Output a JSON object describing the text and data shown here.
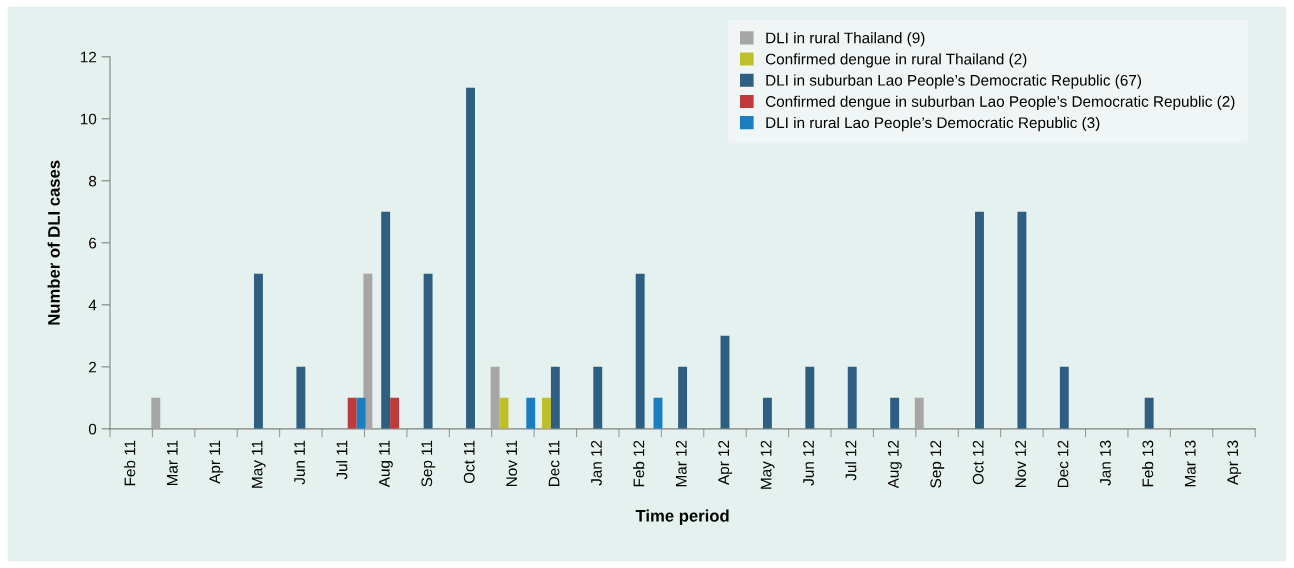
{
  "chart_data": {
    "type": "bar",
    "xlabel": "Time period",
    "ylabel": "Number of DLI cases",
    "categories": [
      "Feb 11",
      "Mar 11",
      "Apr 11",
      "May 11",
      "Jun 11",
      "Jul 11",
      "Aug 11",
      "Sep 11",
      "Oct 11",
      "Nov 11",
      "Dec 11",
      "Jan 12",
      "Feb 12",
      "Mar 12",
      "Apr 12",
      "May 12",
      "Jun 12",
      "Jul 12",
      "Aug 12",
      "Sep 12",
      "Oct 12",
      "Nov 12",
      "Dec 12",
      "Jan 13",
      "Feb 13",
      "Mar 13",
      "Apr 13"
    ],
    "series": [
      {
        "name": "DLI in rural Thailand (9)",
        "color": "#a6a6a6",
        "values": [
          0,
          1,
          0,
          0,
          0,
          0,
          5,
          0,
          0,
          2,
          0,
          0,
          0,
          0,
          0,
          0,
          0,
          0,
          0,
          1,
          0,
          0,
          0,
          0,
          0,
          0,
          0
        ]
      },
      {
        "name": "Confirmed dengue in rural Thailand (2)",
        "color": "#bfbf2a",
        "values": [
          0,
          0,
          0,
          0,
          0,
          0,
          0,
          0,
          0,
          1,
          1,
          0,
          0,
          0,
          0,
          0,
          0,
          0,
          0,
          0,
          0,
          0,
          0,
          0,
          0,
          0,
          0
        ]
      },
      {
        "name": "DLI in suburban Lao People’s Democratic Republic (67)",
        "color": "#2e5f80",
        "values": [
          0,
          0,
          0,
          5,
          2,
          0,
          7,
          5,
          11,
          0,
          2,
          2,
          5,
          2,
          3,
          1,
          2,
          2,
          1,
          0,
          7,
          7,
          2,
          0,
          1,
          0,
          0
        ]
      },
      {
        "name": "Confirmed dengue in suburban Lao People’s Democratic Republic (2)",
        "color": "#c0393b",
        "values": [
          0,
          0,
          0,
          0,
          0,
          1,
          1,
          0,
          0,
          0,
          0,
          0,
          0,
          0,
          0,
          0,
          0,
          0,
          0,
          0,
          0,
          0,
          0,
          0,
          0,
          0,
          0
        ]
      },
      {
        "name": "DLI in rural Lao People’s Democratic Republic (3)",
        "color": "#1a7fc1",
        "values": [
          0,
          0,
          0,
          0,
          0,
          1,
          0,
          0,
          0,
          1,
          0,
          0,
          1,
          0,
          0,
          0,
          0,
          0,
          0,
          0,
          0,
          0,
          0,
          0,
          0,
          0,
          0
        ]
      }
    ],
    "ylim": [
      0,
      12
    ],
    "yticks": [
      0,
      2,
      4,
      6,
      8,
      10,
      12
    ],
    "grid": false,
    "legend": "top right"
  }
}
